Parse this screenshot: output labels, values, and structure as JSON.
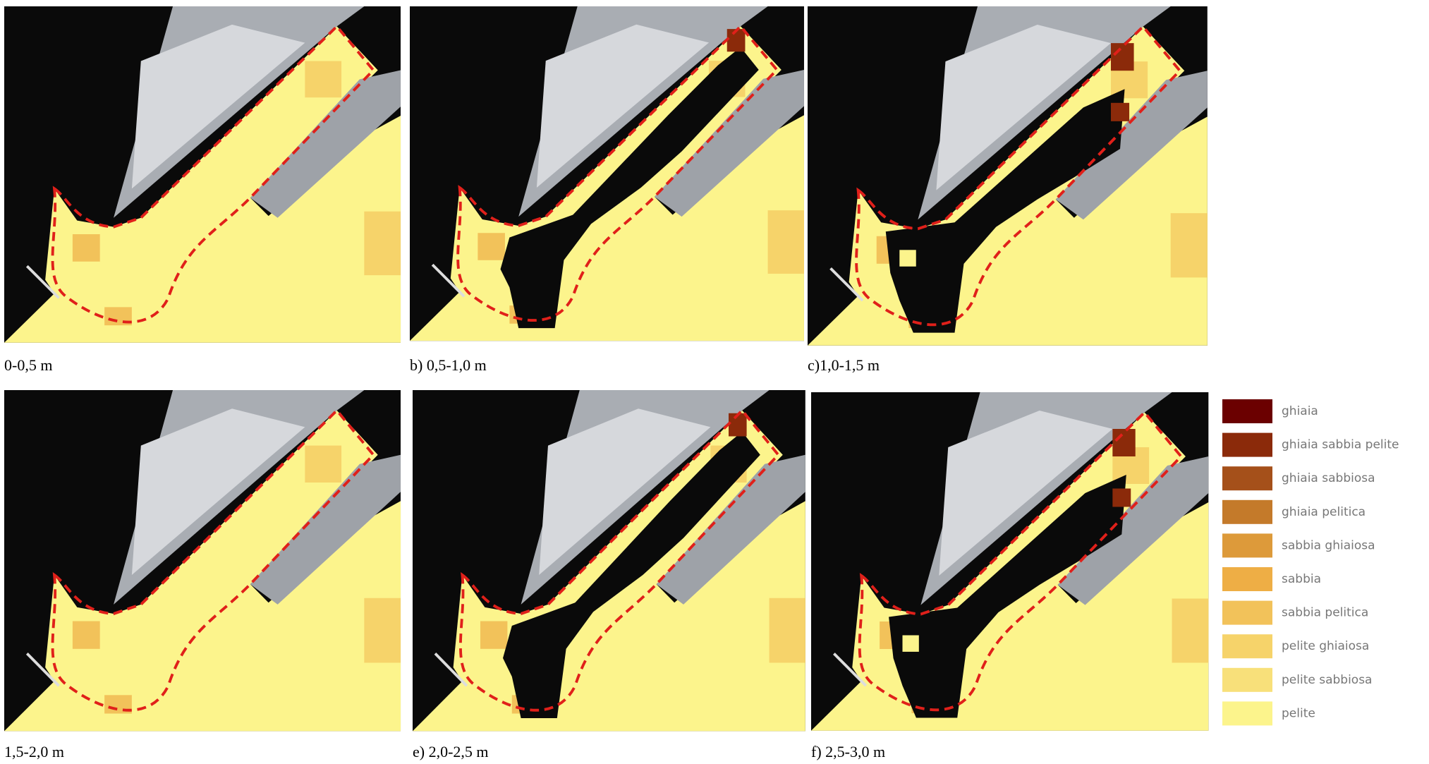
{
  "panels": [
    {
      "caption": "0-0,5 m"
    },
    {
      "caption": "b) 0,5-1,0 m"
    },
    {
      "caption": "c)1,0-1,5 m"
    },
    {
      "caption": "1,5-2,0 m"
    },
    {
      "caption": "e) 2,0-2,5 m"
    },
    {
      "caption": "f) 2,5-3,0 m"
    }
  ],
  "legend": {
    "items": [
      {
        "label": "ghiaia",
        "color": "#6b0000"
      },
      {
        "label": "ghiaia sabbia pelite",
        "color": "#8b2a0a"
      },
      {
        "label": "ghiaia sabbiosa",
        "color": "#a5501a"
      },
      {
        "label": "ghiaia pelitica",
        "color": "#c47a2a"
      },
      {
        "label": "sabbia ghiaiosa",
        "color": "#dd9a3a"
      },
      {
        "label": "sabbia",
        "color": "#eeae45"
      },
      {
        "label": "sabbia pelitica",
        "color": "#f2c25a"
      },
      {
        "label": "pelite ghiaiosa",
        "color": "#f6d36a"
      },
      {
        "label": "pelite sabbiosa",
        "color": "#f8e07a"
      },
      {
        "label": "pelite",
        "color": "#fcf48c"
      }
    ]
  }
}
